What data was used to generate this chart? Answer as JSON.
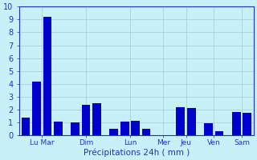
{
  "bars": [
    {
      "day_group": "Lu Mar",
      "value": 1.4
    },
    {
      "day_group": "Lu Mar",
      "value": 4.2
    },
    {
      "day_group": "Lu Mar",
      "value": 9.2
    },
    {
      "day_group": "Lu Mar",
      "value": 1.1
    },
    {
      "day_group": "Dim",
      "value": 1.0
    },
    {
      "day_group": "Dim",
      "value": 2.4
    },
    {
      "day_group": "Dim",
      "value": 2.5
    },
    {
      "day_group": "Lun",
      "value": 0.55
    },
    {
      "day_group": "Lun",
      "value": 1.1
    },
    {
      "day_group": "Lun",
      "value": 1.15
    },
    {
      "day_group": "Lun",
      "value": 0.55
    },
    {
      "day_group": "Mer",
      "value": 0.0
    },
    {
      "day_group": "Jeu",
      "value": 2.2
    },
    {
      "day_group": "Jeu",
      "value": 2.15
    },
    {
      "day_group": "Ven",
      "value": 0.95
    },
    {
      "day_group": "Ven",
      "value": 0.35
    },
    {
      "day_group": "Sam",
      "value": 1.8
    },
    {
      "day_group": "Sam",
      "value": 1.75
    }
  ],
  "day_groups": [
    "Lu Mar",
    "Dim",
    "Lun",
    "Mer",
    "Jeu",
    "Ven",
    "Sam"
  ],
  "bar_color": "#0000CC",
  "background_color": "#C8F0F8",
  "grid_color": "#A8C8D0",
  "xlabel": "Précipitations 24h ( mm )",
  "ylim": [
    0,
    10
  ],
  "yticks": [
    0,
    1,
    2,
    3,
    4,
    5,
    6,
    7,
    8,
    9,
    10
  ],
  "label_color": "#2233BB",
  "axis_color": "#2233BB"
}
